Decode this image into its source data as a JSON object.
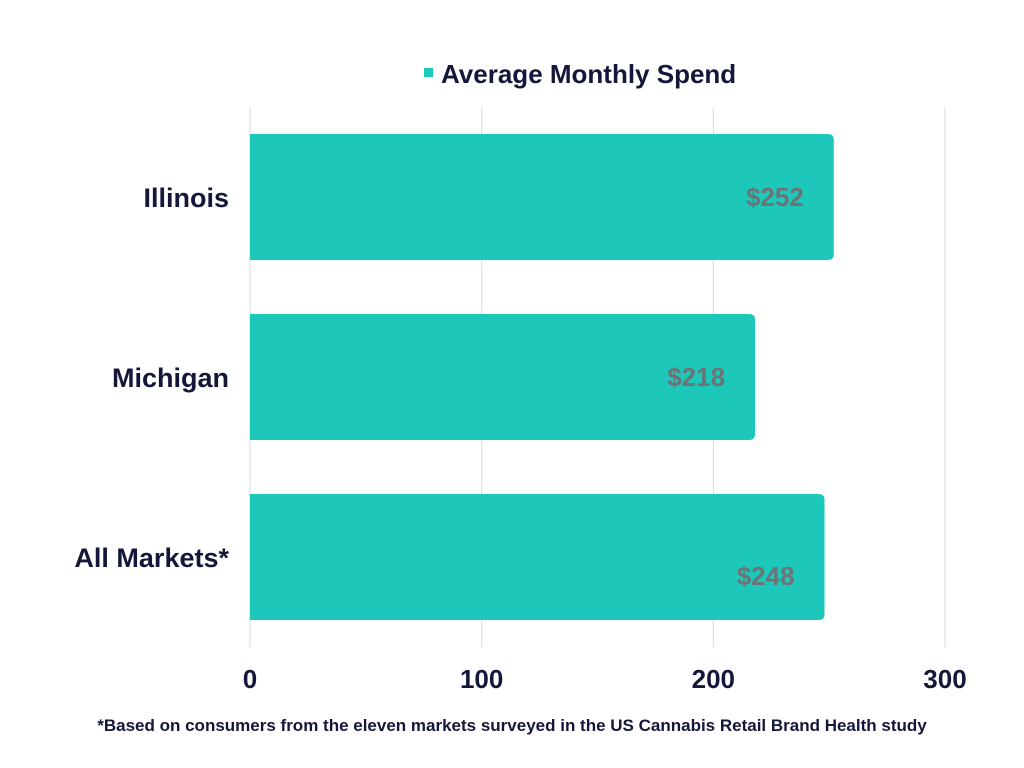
{
  "chart_data": {
    "type": "bar",
    "orientation": "horizontal",
    "categories": [
      "Illinois",
      "Michigan",
      "All Markets*"
    ],
    "series": [
      {
        "name": "Average Monthly Spend",
        "values": [
          252,
          218,
          248
        ],
        "data_labels": [
          "$252",
          "$218",
          "$248"
        ],
        "color": "#1dc8bb"
      }
    ],
    "title": "",
    "xlabel": "",
    "ylabel": "",
    "xlim": [
      0,
      300
    ],
    "x_ticks": [
      0,
      100,
      200,
      300
    ],
    "grid": true,
    "legend_position": "top"
  },
  "footnote": "*Based on consumers from the eleven markets surveyed in the US Cannabis Retail Brand Health study"
}
